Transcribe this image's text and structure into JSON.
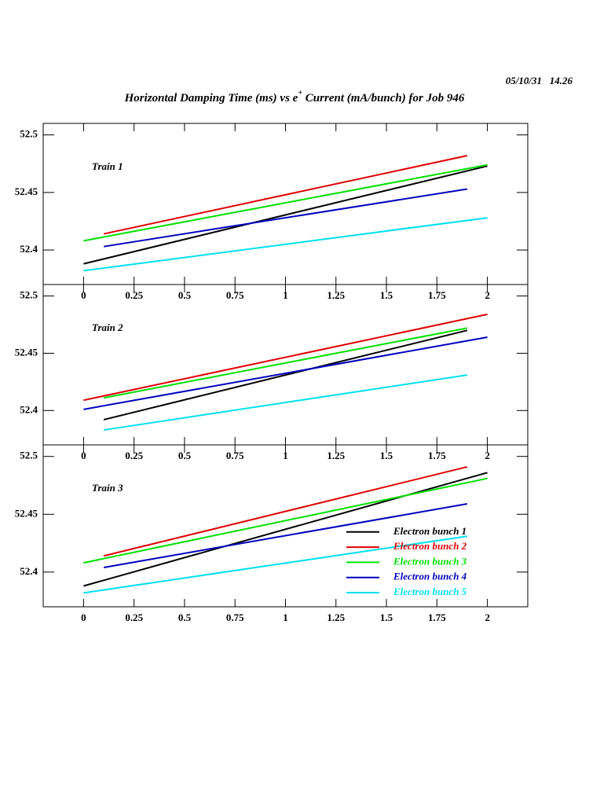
{
  "timestamp": "05/10/31   14.26",
  "title": {
    "before": "Horizontal Damping Time (ms) vs e",
    "sup": "+",
    "after": " Current (mA/bunch) for Job 946"
  },
  "chart_data": [
    {
      "type": "line",
      "annotation": "Train 1",
      "xlim": [
        -0.2,
        2.2
      ],
      "ylim": [
        52.37,
        52.51
      ],
      "xticks": [
        0,
        0.25,
        0.5,
        0.75,
        1,
        1.25,
        1.5,
        1.75,
        2
      ],
      "yticks": [
        52.4,
        52.45,
        52.5
      ],
      "series": [
        {
          "color": "#000000",
          "x": [
            0,
            2
          ],
          "values": [
            52.388,
            52.473
          ]
        },
        {
          "color": "#e00000",
          "x": [
            0.1,
            1.9
          ],
          "values": [
            52.414,
            52.482
          ]
        },
        {
          "color": "#00e000",
          "x": [
            0,
            2
          ],
          "values": [
            52.408,
            52.474
          ]
        },
        {
          "color": "#0000c0",
          "x": [
            0.1,
            1.9
          ],
          "values": [
            52.403,
            52.453
          ]
        },
        {
          "color": "#00e0f0",
          "x": [
            0,
            2
          ],
          "values": [
            52.382,
            52.428
          ]
        }
      ]
    },
    {
      "type": "line",
      "annotation": "Train 2",
      "xlim": [
        -0.2,
        2.2
      ],
      "ylim": [
        52.37,
        52.51
      ],
      "xticks": [
        0,
        0.25,
        0.5,
        0.75,
        1,
        1.25,
        1.5,
        1.75,
        2
      ],
      "yticks": [
        52.4,
        52.45,
        52.5
      ],
      "series": [
        {
          "color": "#000000",
          "x": [
            0.1,
            1.9
          ],
          "values": [
            52.392,
            52.47
          ]
        },
        {
          "color": "#e00000",
          "x": [
            0,
            2
          ],
          "values": [
            52.409,
            52.484
          ]
        },
        {
          "color": "#00e000",
          "x": [
            0.1,
            1.9
          ],
          "values": [
            52.411,
            52.472
          ]
        },
        {
          "color": "#0000c0",
          "x": [
            0,
            2
          ],
          "values": [
            52.401,
            52.464
          ]
        },
        {
          "color": "#00e0f0",
          "x": [
            0.1,
            1.9
          ],
          "values": [
            52.383,
            52.431
          ]
        }
      ]
    },
    {
      "type": "line",
      "annotation": "Train 3",
      "xlim": [
        -0.2,
        2.2
      ],
      "ylim": [
        52.37,
        52.51
      ],
      "xticks": [
        0,
        0.25,
        0.5,
        0.75,
        1,
        1.25,
        1.5,
        1.75,
        2
      ],
      "yticks": [
        52.4,
        52.45,
        52.5
      ],
      "legend": "lower right",
      "series": [
        {
          "name": "Electron bunch 1",
          "color": "#000000",
          "x": [
            0,
            2
          ],
          "values": [
            52.388,
            52.486
          ]
        },
        {
          "name": "Electron bunch 2",
          "color": "#e00000",
          "x": [
            0.1,
            1.9
          ],
          "values": [
            52.414,
            52.491
          ]
        },
        {
          "name": "Electron bunch 3",
          "color": "#00e000",
          "x": [
            0,
            2
          ],
          "values": [
            52.408,
            52.481
          ]
        },
        {
          "name": "Electron bunch 4",
          "color": "#0000c0",
          "x": [
            0.1,
            1.9
          ],
          "values": [
            52.404,
            52.459
          ]
        },
        {
          "name": "Electron bunch 5",
          "color": "#00e0f0",
          "x": [
            0,
            1.9
          ],
          "values": [
            52.382,
            52.431
          ]
        }
      ]
    }
  ]
}
